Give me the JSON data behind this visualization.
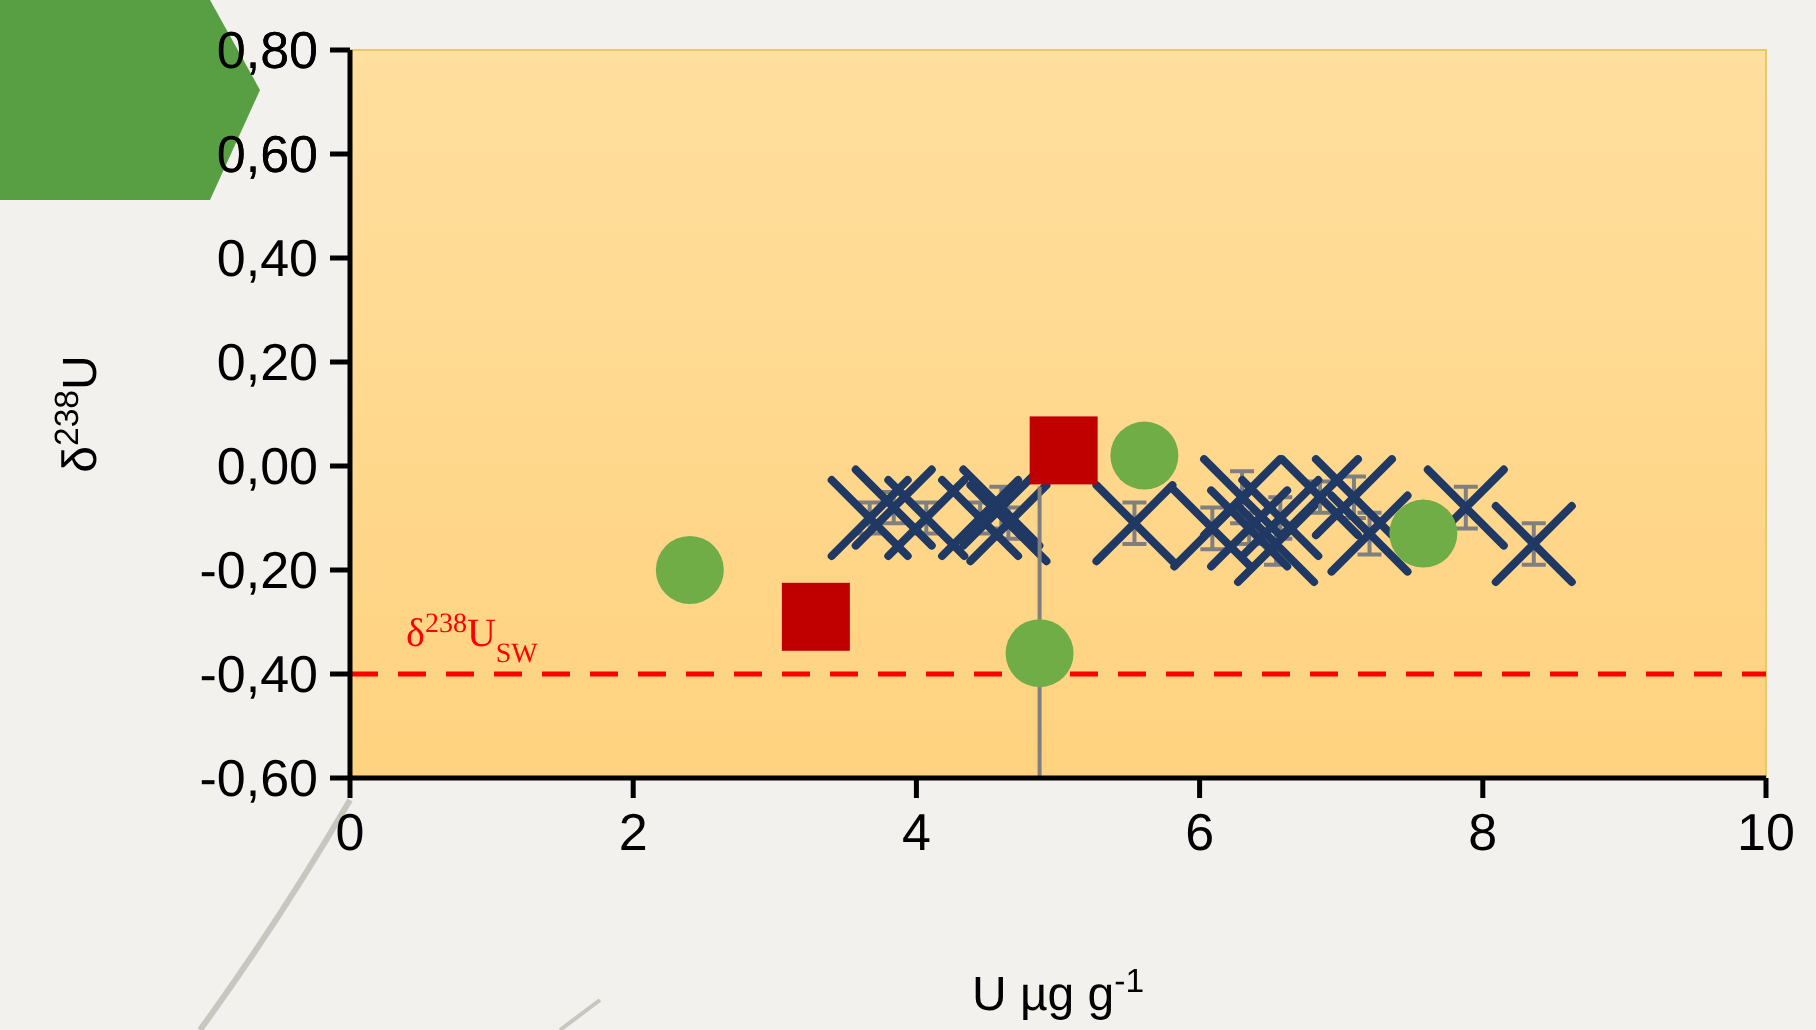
{
  "chart_data": {
    "type": "scatter",
    "xlabel": "U µg g$^{-1}$",
    "ylabel": "δ$^{238}$U",
    "xlim": [
      0,
      10
    ],
    "xticks": [
      0,
      2,
      4,
      6,
      8,
      10
    ],
    "ylim": [
      -0.6,
      0.8
    ],
    "yticks": [
      {
        "value": -0.6,
        "label": "-0,60"
      },
      {
        "value": -0.4,
        "label": "-0,40"
      },
      {
        "value": -0.2,
        "label": "-0,20"
      },
      {
        "value": 0,
        "label": "0,00"
      },
      {
        "value": 0.2,
        "label": "0,20"
      },
      {
        "value": 0.4,
        "label": "0,40"
      },
      {
        "value": 0.6,
        "label": "0,60"
      },
      {
        "value": 0.8,
        "label": "0,80"
      }
    ],
    "grid": false,
    "series": [
      {
        "color": "#1f3864",
        "marker": "cross",
        "x": [
          3.67,
          3.84,
          4.07,
          4.45,
          4.6,
          4.65,
          5.54,
          6.09,
          6.3,
          6.35,
          6.54,
          6.57,
          6.85,
          7.09,
          7.2,
          7.88,
          8.36
        ],
        "values": [
          -0.1,
          -0.08,
          -0.1,
          -0.1,
          -0.08,
          -0.11,
          -0.11,
          -0.12,
          -0.06,
          -0.12,
          -0.15,
          -0.1,
          -0.06,
          -0.06,
          -0.13,
          -0.08,
          -0.15
        ],
        "errors": [
          0.03,
          0.03,
          0.03,
          0.03,
          0.04,
          0.03,
          0.04,
          0.04,
          0.05,
          0.03,
          0.04,
          0.04,
          0.03,
          0.04,
          0.04,
          0.04,
          0.04
        ]
      },
      {
        "color": "#70ad47",
        "marker": "circle",
        "x": [
          2.4,
          4.87,
          5.61,
          7.58
        ],
        "values": [
          -0.2,
          -0.36,
          0.02,
          -0.13
        ],
        "errors": [
          null,
          [
            -0.6,
            -0.04
          ],
          null,
          null
        ]
      },
      {
        "color": "#c00000",
        "marker": "square",
        "x": [
          3.29,
          5.04
        ],
        "values": [
          -0.29,
          0.03
        ]
      }
    ],
    "ref_lines": [
      {
        "axis": "y",
        "value": -0.4,
        "label": "δ$^{238}$U$_{SW}$",
        "color": "#ff0000",
        "line_style": "dashed"
      }
    ]
  }
}
